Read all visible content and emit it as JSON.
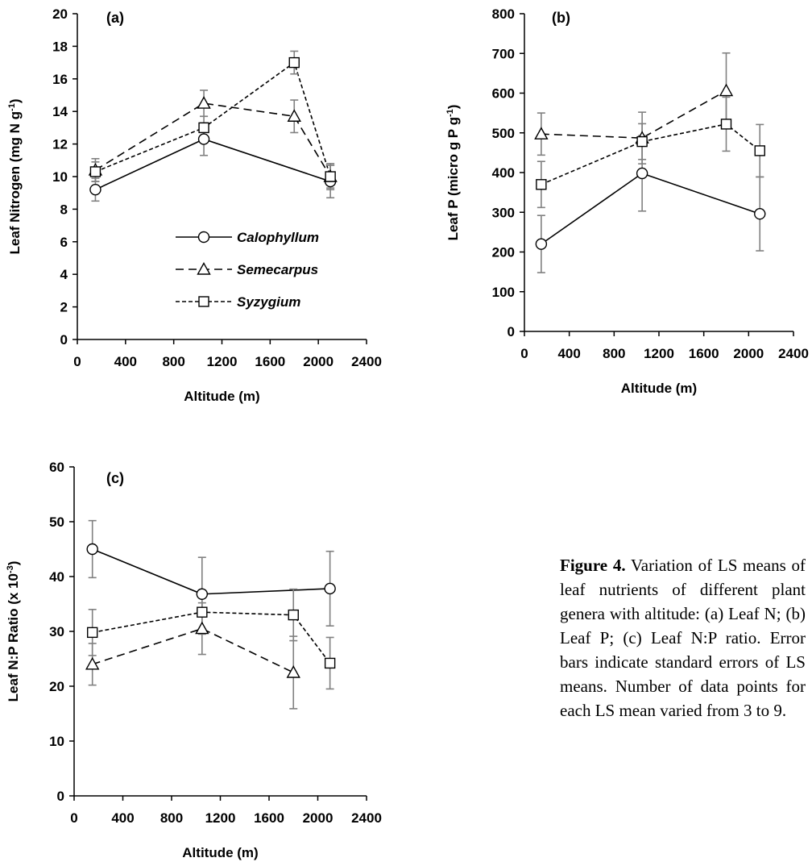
{
  "caption": {
    "label": "Figure 4.",
    "text": "Variation of LS means of leaf nutrients of different plant genera with altitude: (a) Leaf N; (b) Leaf P; (c) Leaf N:P ratio. Error bars indicate standard errors of LS means. Number of data points for each LS mean varied from 3 to 9."
  },
  "legend": [
    {
      "name": "Calophyllum",
      "marker": "circle",
      "dash": "solid"
    },
    {
      "name": "Semecarpus",
      "marker": "triangle",
      "dash": "dashed"
    },
    {
      "name": "Syzygium",
      "marker": "square",
      "dash": "dotted"
    }
  ],
  "colors": {
    "line": "#000000",
    "error_bar": "#808080"
  },
  "chart_data": [
    {
      "type": "line",
      "panel_label": "(a)",
      "xlabel": "Altitude (m)",
      "ylabel": "Leaf Nitrogen (mg N g-1)",
      "xlim": [
        0,
        2400
      ],
      "ylim": [
        0,
        20
      ],
      "xticks": [
        0,
        400,
        800,
        1200,
        1600,
        2000,
        2400
      ],
      "yticks": [
        0,
        2,
        4,
        6,
        8,
        10,
        12,
        14,
        16,
        18,
        20
      ],
      "legend_position": "lower-center",
      "series": [
        {
          "name": "Calophyllum",
          "x": [
            150,
            1050,
            2100
          ],
          "y": [
            9.2,
            12.3,
            9.7
          ],
          "err": [
            0.7,
            1.0,
            1.0
          ]
        },
        {
          "name": "Semecarpus",
          "x": [
            150,
            1050,
            1800,
            2100
          ],
          "y": [
            10.4,
            14.5,
            13.7,
            10.0
          ],
          "err": [
            0.7,
            0.8,
            1.0,
            0.8
          ]
        },
        {
          "name": "Syzygium",
          "x": [
            150,
            1050,
            1800,
            2100
          ],
          "y": [
            10.3,
            13.0,
            17.0,
            10.0
          ],
          "err": [
            0.6,
            0.7,
            0.7,
            0.7
          ]
        }
      ]
    },
    {
      "type": "line",
      "panel_label": "(b)",
      "xlabel": "Altitude (m)",
      "ylabel": "Leaf P (micro g P g-1)",
      "xlim": [
        0,
        2400
      ],
      "ylim": [
        0,
        800
      ],
      "xticks": [
        0,
        400,
        800,
        1200,
        1600,
        2000,
        2400
      ],
      "yticks": [
        0,
        100,
        200,
        300,
        400,
        500,
        600,
        700,
        800
      ],
      "series": [
        {
          "name": "Calophyllum",
          "x": [
            150,
            1050,
            2100
          ],
          "y": [
            220,
            398,
            296
          ],
          "err": [
            72,
            95,
            93
          ]
        },
        {
          "name": "Semecarpus",
          "x": [
            150,
            1050,
            1800
          ],
          "y": [
            497,
            487,
            606
          ],
          "err": [
            53,
            65,
            95
          ]
        },
        {
          "name": "Syzygium",
          "x": [
            150,
            1050,
            1800,
            2100
          ],
          "y": [
            370,
            478,
            522,
            455
          ],
          "err": [
            58,
            45,
            68,
            66
          ]
        }
      ]
    },
    {
      "type": "line",
      "panel_label": "(c)",
      "xlabel": "Altitude (m)",
      "ylabel": "Leaf N:P Ratio (x 10-3)",
      "xlim": [
        0,
        2400
      ],
      "ylim": [
        0,
        60
      ],
      "xticks": [
        0,
        400,
        800,
        1200,
        1600,
        2000,
        2400
      ],
      "yticks": [
        0,
        10,
        20,
        30,
        40,
        50,
        60
      ],
      "series": [
        {
          "name": "Calophyllum",
          "x": [
            150,
            1050,
            2100
          ],
          "y": [
            45.0,
            36.8,
            37.8
          ],
          "err": [
            5.2,
            6.7,
            6.8
          ]
        },
        {
          "name": "Semecarpus",
          "x": [
            150,
            1050,
            1800
          ],
          "y": [
            24.0,
            30.5,
            22.5
          ],
          "err": [
            3.8,
            4.7,
            6.6
          ]
        },
        {
          "name": "Syzygium",
          "x": [
            150,
            1050,
            1800,
            2100
          ],
          "y": [
            29.8,
            33.5,
            33.0,
            24.2
          ],
          "err": [
            4.2,
            4.0,
            4.7,
            4.7
          ]
        }
      ]
    }
  ]
}
